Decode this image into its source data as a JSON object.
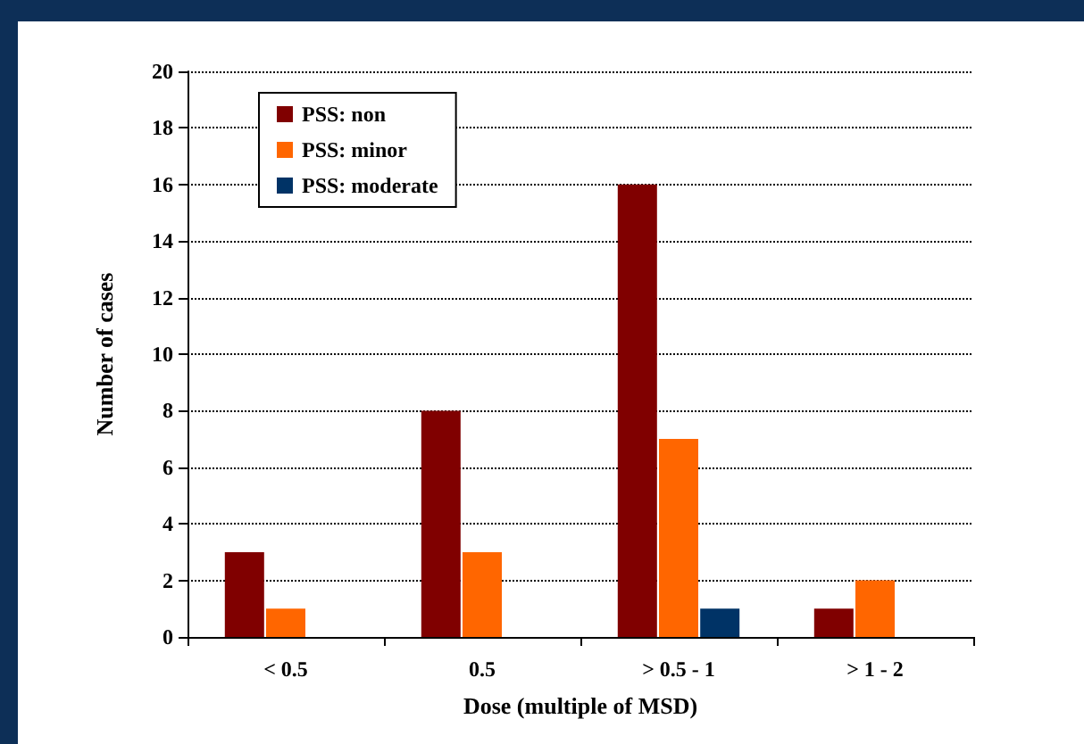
{
  "chart_data": {
    "type": "bar",
    "xlabel": "Dose (multiple of MSD)",
    "ylabel": "Number of cases",
    "categories": [
      "< 0.5",
      "0.5",
      "> 0.5 - 1",
      "> 1 - 2"
    ],
    "series": [
      {
        "name": "PSS: non",
        "color": "#800000",
        "values": [
          3,
          8,
          16,
          1
        ]
      },
      {
        "name": "PSS: minor",
        "color": "#ff6600",
        "values": [
          1,
          3,
          7,
          2
        ]
      },
      {
        "name": "PSS: moderate",
        "color": "#003366",
        "values": [
          0,
          0,
          1,
          0
        ]
      }
    ],
    "ylim": [
      0,
      20
    ],
    "yticks": [
      0,
      2,
      4,
      6,
      8,
      10,
      12,
      14,
      16,
      18,
      20
    ],
    "grid": "y",
    "legend": "top left"
  }
}
